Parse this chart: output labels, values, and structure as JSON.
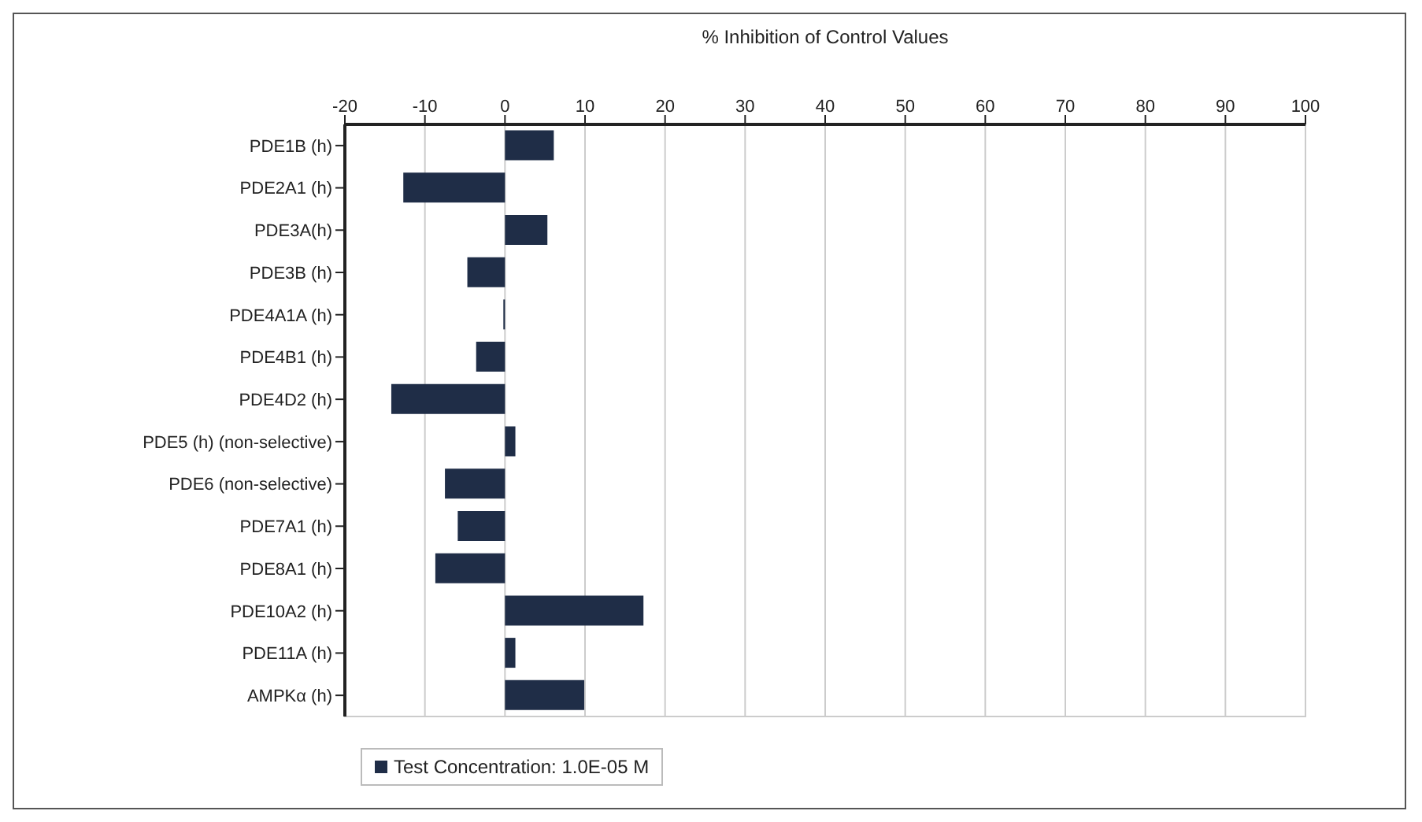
{
  "chart_data": {
    "type": "bar",
    "orientation": "horizontal",
    "xlabel": "% Inhibition of Control Values",
    "categories": [
      "PDE1B (h)",
      "PDE2A1 (h)",
      "PDE3A(h)",
      "PDE3B (h)",
      "PDE4A1A (h)",
      "PDE4B1 (h)",
      "PDE4D2 (h)",
      "PDE5 (h) (non-selective)",
      "PDE6 (non-selective)",
      "PDE7A1 (h)",
      "PDE8A1 (h)",
      "PDE10A2 (h)",
      "PDE11A (h)",
      "AMPKα (h)"
    ],
    "series": [
      {
        "name": "Test Concentration: 1.0E-05 M",
        "color": "#1f2d47",
        "values": [
          6.1,
          -12.7,
          5.3,
          -4.7,
          -0.2,
          -3.6,
          -14.2,
          1.3,
          -7.5,
          -5.9,
          -8.7,
          17.3,
          1.3,
          9.9
        ]
      }
    ],
    "xlim": [
      -20,
      100
    ],
    "xticks": [
      -20,
      -10,
      0,
      10,
      20,
      30,
      40,
      50,
      60,
      70,
      80,
      90,
      100
    ],
    "grid": "x",
    "legend": "bottom left"
  }
}
